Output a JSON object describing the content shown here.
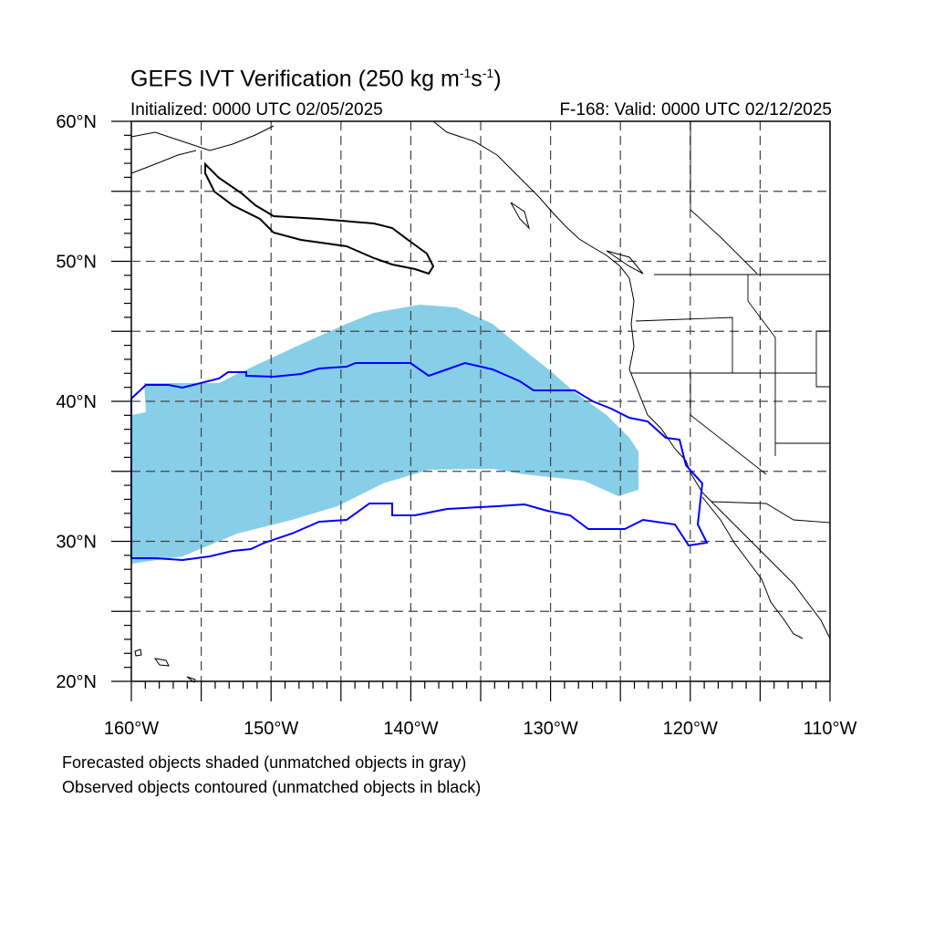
{
  "title": {
    "main": "GEFS IVT Verification (250 kg m",
    "sup1": "-1",
    "mid": "s",
    "sup2": "-1",
    "end": ")"
  },
  "init_text": "Initialized: 0000 UTC 02/05/2025",
  "valid_text": "F-168: Valid: 0000 UTC 02/12/2025",
  "footnotes": [
    "Forecasted objects shaded (unmatched objects in gray)",
    "Observed objects contoured (unmatched objects in black)"
  ],
  "map": {
    "lon_range": [
      -160,
      -110
    ],
    "lat_range": [
      20,
      60
    ],
    "lat_ticks": [
      {
        "lat": 60,
        "label": "60°N"
      },
      {
        "lat": 50,
        "label": "50°N"
      },
      {
        "lat": 40,
        "label": "40°N"
      },
      {
        "lat": 30,
        "label": "30°N"
      },
      {
        "lat": 20,
        "label": "20°N"
      }
    ],
    "lon_ticks": [
      {
        "lon": -160,
        "label": "160°W"
      },
      {
        "lon": -150,
        "label": "150°W"
      },
      {
        "lon": -140,
        "label": "140°W"
      },
      {
        "lon": -130,
        "label": "130°W"
      },
      {
        "lon": -120,
        "label": "120°W"
      },
      {
        "lon": -110,
        "label": "110°W"
      }
    ],
    "colors": {
      "forecast_fill": "#87cee8",
      "observed_matched": "#0000ff",
      "observed_unmatched": "#000000",
      "coastline": "#000000",
      "grid": "#444444"
    }
  }
}
